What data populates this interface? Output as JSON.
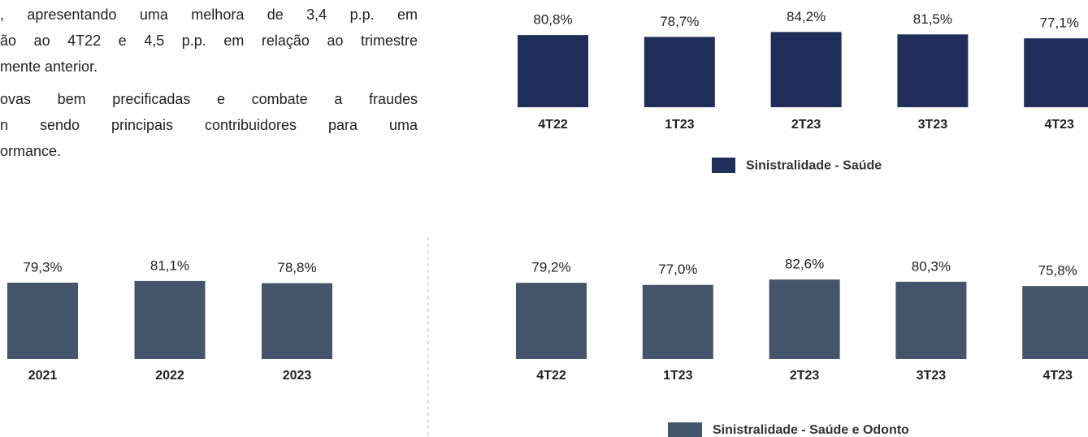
{
  "text": {
    "paragraphs": [
      [
        ", apresentando uma melhora de 3,4 p.p. em",
        "ão ao 4T22 e 4,5 p.p. em relação ao trimestre",
        "mente anterior."
      ],
      [
        "ovas bem precificadas e combate a fraudes",
        "n sendo principais contribuidores para uma",
        "ormance."
      ]
    ]
  },
  "chart_data": [
    {
      "type": "bar",
      "categories": [
        "4T22",
        "1T23",
        "2T23",
        "3T23",
        "4T23"
      ],
      "series": [
        {
          "name": "Sinistralidade - Saúde",
          "color": "#1f2f5a",
          "values": [
            80.8,
            78.7,
            84.2,
            81.5,
            77.1
          ],
          "value_labels": [
            "80,8%",
            "78,7%",
            "84,2%",
            "81,5%",
            "77,1%"
          ]
        }
      ]
    },
    {
      "type": "bar",
      "categories": [
        "2021",
        "2022",
        "2023"
      ],
      "series": [
        {
          "color": "#44546a",
          "values": [
            79.3,
            81.1,
            78.8
          ],
          "value_labels": [
            "79,3%",
            "81,1%",
            "78,8%"
          ]
        }
      ]
    },
    {
      "type": "bar",
      "categories": [
        "4T22",
        "1T23",
        "2T23",
        "3T23",
        "4T23"
      ],
      "series": [
        {
          "name": "Sinistralidade - Saúde e Odonto",
          "color": "#44546a",
          "values": [
            79.2,
            77.0,
            82.6,
            80.3,
            75.8
          ],
          "value_labels": [
            "79,2%",
            "77,0%",
            "82,6%",
            "80,3%",
            "75,8%"
          ]
        }
      ]
    }
  ]
}
